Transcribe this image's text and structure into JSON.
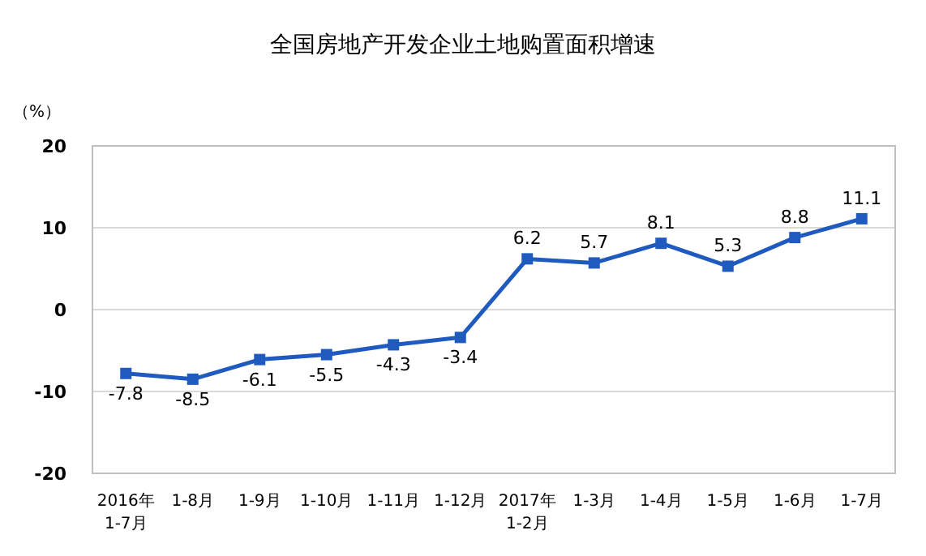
{
  "chart_data": {
    "type": "line",
    "title": "全国房地产开发企业土地购置面积增速",
    "ylabel": "（%）",
    "categories": [
      "2016年\n1-7月",
      "1-8月",
      "1-9月",
      "1-10月",
      "1-11月",
      "1-12月",
      "2017年\n1-2月",
      "1-3月",
      "1-4月",
      "1-5月",
      "1-6月",
      "1-7月"
    ],
    "series": [
      {
        "color": "#1f5bbf",
        "values": [
          -7.8,
          -8.5,
          -6.1,
          -5.5,
          -4.3,
          -3.4,
          6.2,
          5.7,
          8.1,
          5.3,
          8.8,
          11.1
        ]
      }
    ],
    "ylim": [
      -20,
      20
    ],
    "yticks": [
      -20,
      -10,
      0,
      10,
      20
    ],
    "grid": "y",
    "marker": "square",
    "line_style": "solid",
    "data_labels": true
  }
}
